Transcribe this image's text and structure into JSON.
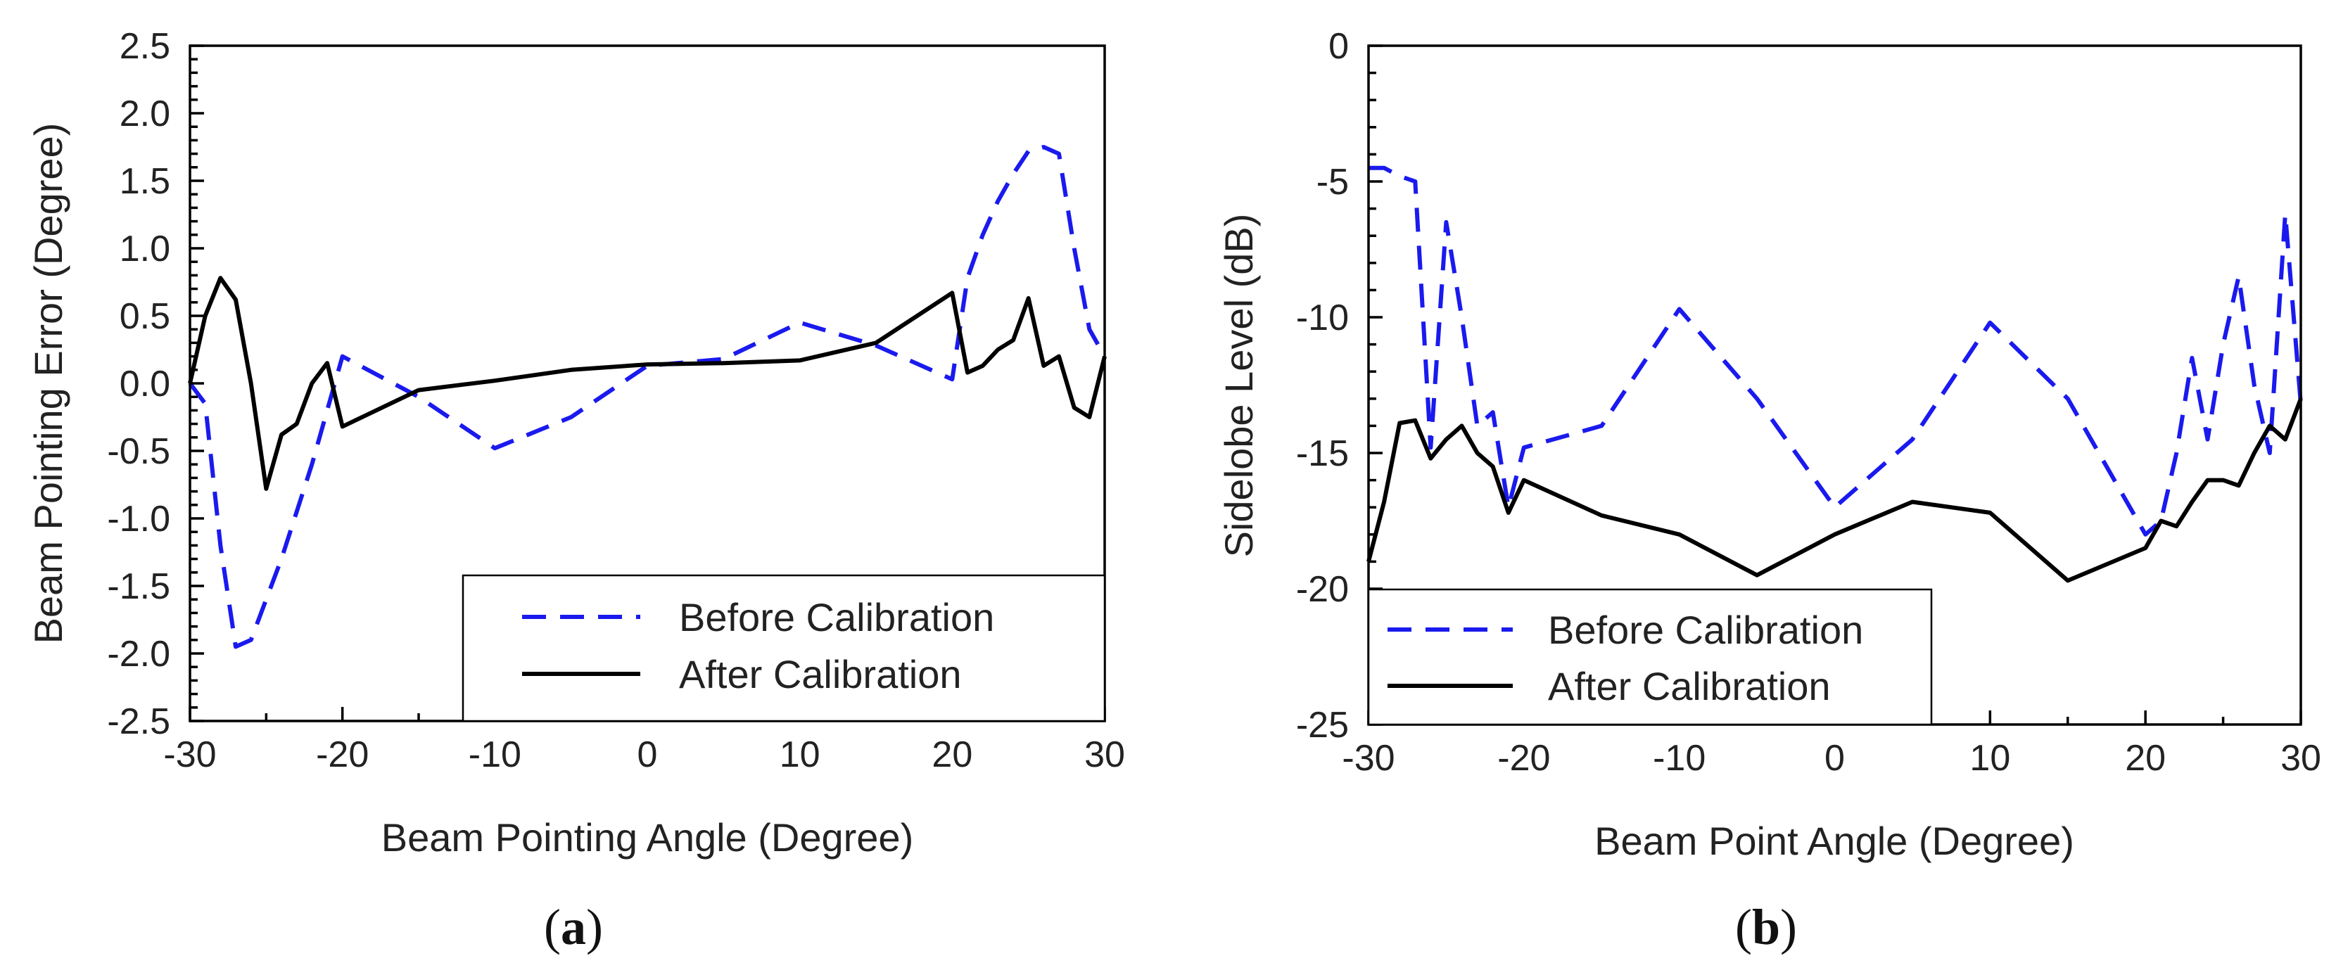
{
  "figure": {
    "captions": {
      "a": "a",
      "b": "b"
    }
  },
  "chart_data": [
    {
      "id": "a",
      "type": "line",
      "xlabel": "Beam Pointing Angle (Degree)",
      "ylabel": "Beam Pointing Error (Degree)",
      "xlim": [
        -30,
        30
      ],
      "ylim": [
        -2.5,
        2.5
      ],
      "xticks": [
        -30,
        -20,
        -10,
        0,
        10,
        20,
        30
      ],
      "xtick_labels": [
        "-30",
        "-20",
        "-10",
        "0",
        "10",
        "20",
        "30"
      ],
      "yticks": [
        2.5,
        2.0,
        1.5,
        1.0,
        0.5,
        0.0,
        -0.5,
        -1.0,
        -1.5,
        -2.0,
        -2.5
      ],
      "ytick_labels": [
        "2.5",
        "2.0",
        "1.5",
        "1.0",
        "0.5",
        "0.0",
        "-0.5",
        "-1.0",
        "-1.5",
        "-2.0",
        "-2.5"
      ],
      "legend_position": "bottom-right",
      "series": [
        {
          "name": "Before Calibration",
          "color": "#1a1aee",
          "style": "dashed",
          "x": [
            -30,
            -29,
            -28,
            -27,
            -26,
            -25,
            -24,
            -23,
            -22,
            -21,
            -20,
            -15,
            -10,
            -5,
            0,
            5,
            10,
            15,
            20,
            21,
            22,
            23,
            24,
            25,
            26,
            27,
            28,
            29,
            30
          ],
          "y": [
            0.0,
            -0.15,
            -1.2,
            -1.95,
            -1.9,
            -1.6,
            -1.3,
            -0.95,
            -0.6,
            -0.2,
            0.2,
            -0.1,
            -0.48,
            -0.25,
            0.13,
            0.18,
            0.45,
            0.28,
            0.03,
            0.78,
            1.1,
            1.35,
            1.55,
            1.72,
            1.75,
            1.7,
            1.0,
            0.4,
            0.2
          ]
        },
        {
          "name": "After Calibration",
          "color": "#000000",
          "style": "solid",
          "x": [
            -30,
            -29,
            -28,
            -27,
            -26,
            -25,
            -24,
            -23,
            -22,
            -21,
            -20,
            -15,
            -10,
            -5,
            0,
            5,
            10,
            15,
            20,
            21,
            22,
            23,
            24,
            25,
            26,
            27,
            28,
            29,
            30
          ],
          "y": [
            0.0,
            0.5,
            0.78,
            0.62,
            0.0,
            -0.78,
            -0.38,
            -0.3,
            0.0,
            0.15,
            -0.32,
            -0.05,
            0.02,
            0.1,
            0.14,
            0.15,
            0.17,
            0.3,
            0.67,
            0.08,
            0.13,
            0.25,
            0.32,
            0.63,
            0.13,
            0.2,
            -0.18,
            -0.25,
            0.2
          ]
        }
      ]
    },
    {
      "id": "b",
      "type": "line",
      "xlabel": "Beam Point Angle (Degree)",
      "ylabel": "Sidelobe Level (dB)",
      "xlim": [
        -30,
        30
      ],
      "ylim": [
        -25,
        0
      ],
      "xticks": [
        -30,
        -20,
        -10,
        0,
        10,
        20,
        30
      ],
      "xtick_labels": [
        "-30",
        "-20",
        "-10",
        "0",
        "10",
        "20",
        "30"
      ],
      "yticks": [
        0,
        -5,
        -10,
        -15,
        -20,
        -25
      ],
      "ytick_labels": [
        "0",
        "-5",
        "-10",
        "-15",
        "-20",
        "-25"
      ],
      "legend_position": "bottom-left",
      "series": [
        {
          "name": "Before Calibration",
          "color": "#1a1aee",
          "style": "dashed",
          "x": [
            -30,
            -29,
            -28,
            -27,
            -26,
            -25,
            -24,
            -23,
            -22,
            -21,
            -20,
            -15,
            -10,
            -5,
            0,
            5,
            10,
            15,
            20,
            21,
            22,
            23,
            24,
            25,
            26,
            27,
            28,
            29,
            30
          ],
          "y": [
            -4.5,
            -4.5,
            -4.8,
            -5.0,
            -14.8,
            -6.5,
            -10.0,
            -14.0,
            -13.5,
            -17.0,
            -14.8,
            -14.0,
            -9.7,
            -13.0,
            -17.0,
            -14.5,
            -10.2,
            -13.0,
            -18.0,
            -17.5,
            -15.0,
            -11.5,
            -14.5,
            -11.0,
            -8.5,
            -12.5,
            -15.0,
            -6.2,
            -13.2
          ]
        },
        {
          "name": "After Calibration",
          "color": "#000000",
          "style": "solid",
          "x": [
            -30,
            -29,
            -28,
            -27,
            -26,
            -25,
            -24,
            -23,
            -22,
            -21,
            -20,
            -15,
            -10,
            -5,
            0,
            5,
            10,
            15,
            20,
            21,
            22,
            23,
            24,
            25,
            26,
            27,
            28,
            29,
            30
          ],
          "y": [
            -19.0,
            -16.8,
            -13.9,
            -13.8,
            -15.2,
            -14.5,
            -14.0,
            -15.0,
            -15.5,
            -17.2,
            -16.0,
            -17.3,
            -18.0,
            -19.5,
            -18.0,
            -16.8,
            -17.2,
            -19.7,
            -18.5,
            -17.5,
            -17.7,
            -16.8,
            -16.0,
            -16.0,
            -16.2,
            -15.0,
            -14.0,
            -14.5,
            -13.0
          ]
        }
      ]
    }
  ]
}
